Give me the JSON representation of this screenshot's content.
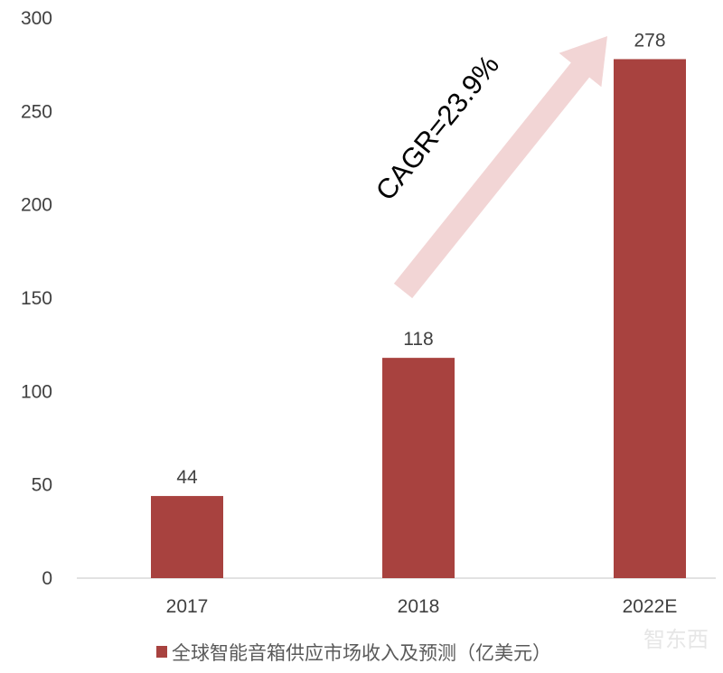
{
  "chart_data": {
    "type": "bar",
    "categories": [
      "2017",
      "2018",
      "2022E"
    ],
    "series": [
      {
        "name": "全球智能音箱供应市场收入及预测（亿美元）",
        "values": [
          44,
          118,
          278
        ]
      }
    ],
    "data_labels": [
      "44",
      "118",
      "278"
    ],
    "ylim": [
      0,
      300
    ],
    "yticks": [
      "0",
      "50",
      "100",
      "150",
      "200",
      "250",
      "300"
    ],
    "grid": false,
    "legend_position": "bottom",
    "annotation": "CAGR=23.9%",
    "colors": {
      "bar": "#a8423f",
      "arrow": "#f2d5d5",
      "text": "#404040"
    }
  },
  "watermark": "智东西"
}
